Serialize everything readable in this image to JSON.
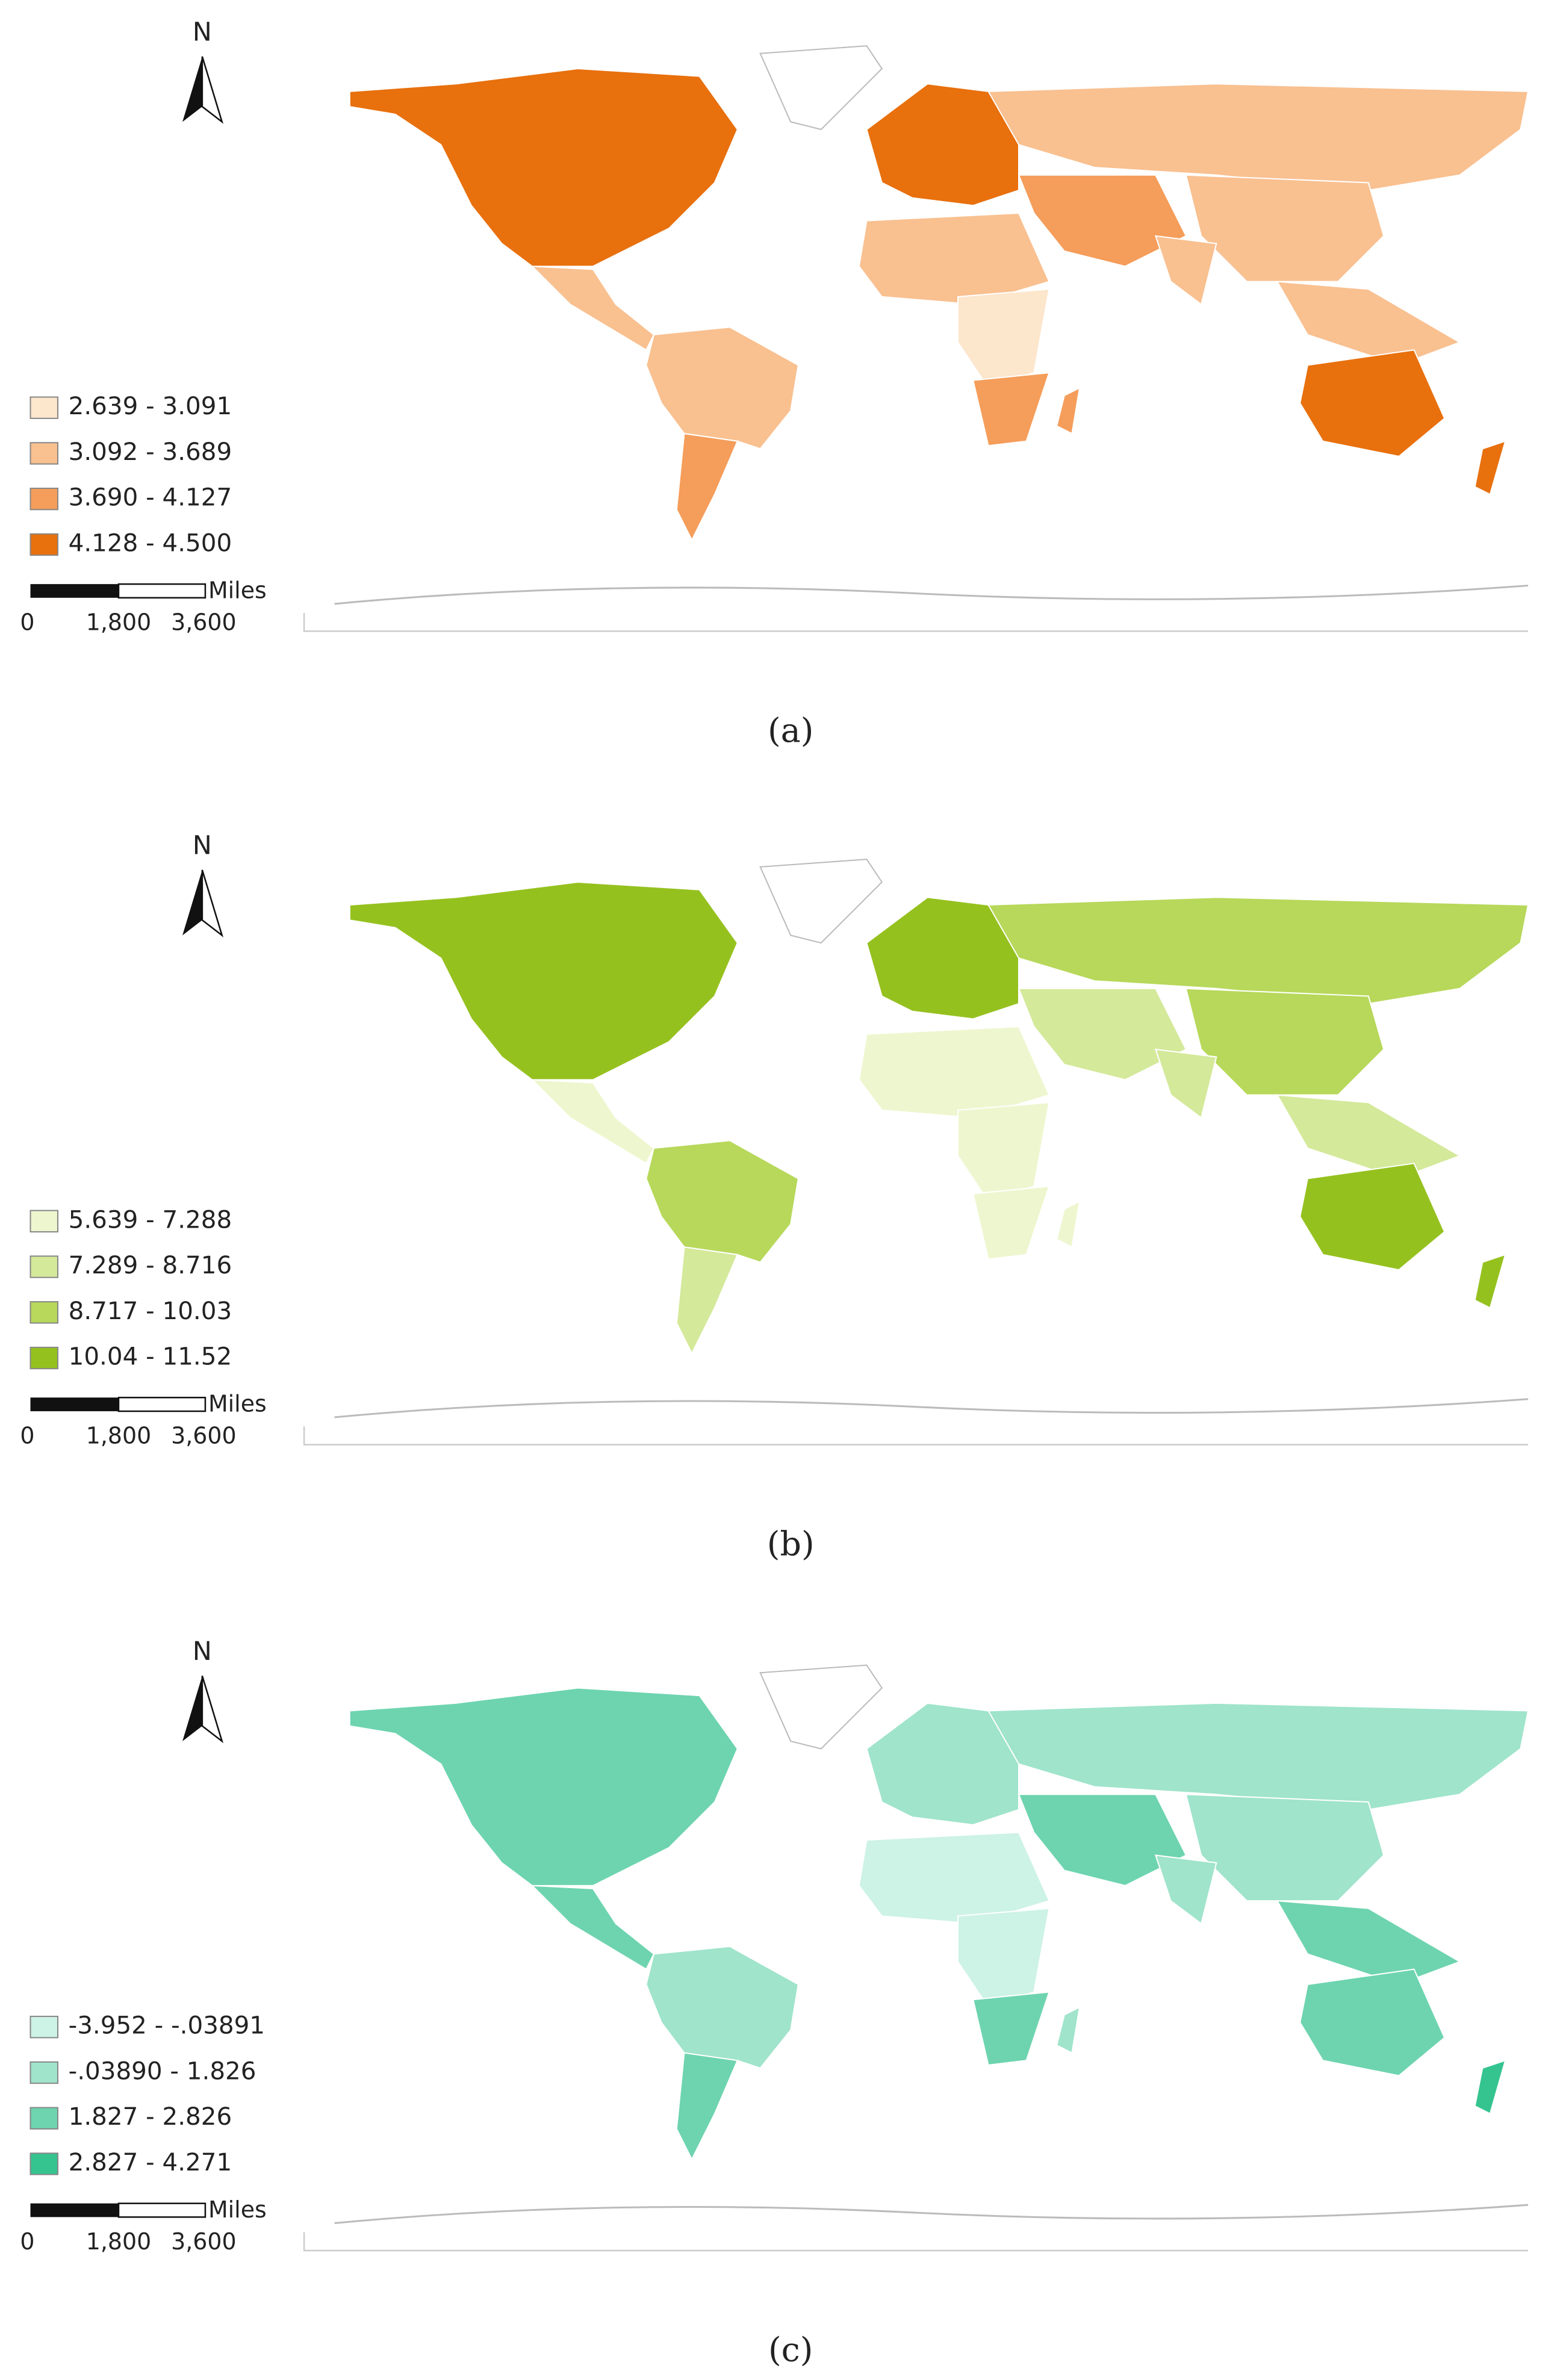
{
  "panels": [
    {
      "label": "(a)",
      "north": "N",
      "legend": [
        {
          "label": "2.639 - 3.091",
          "color": "#fce6cc"
        },
        {
          "label": "3.092 - 3.689",
          "color": "#f9c090"
        },
        {
          "label": "3.690 - 4.127",
          "color": "#f59d5a"
        },
        {
          "label": "4.128 - 4.500",
          "color": "#e8700d"
        }
      ],
      "scale": {
        "unit": "Miles",
        "ticks": [
          "0",
          "1,800",
          "3,600"
        ]
      }
    },
    {
      "label": "(b)",
      "north": "N",
      "legend": [
        {
          "label": "5.639 - 7.288",
          "color": "#eef6cf"
        },
        {
          "label": "7.289 - 8.716",
          "color": "#d4e99a"
        },
        {
          "label": "8.717 - 10.03",
          "color": "#b7d85a"
        },
        {
          "label": "10.04 - 11.52",
          "color": "#95c11f"
        }
      ],
      "scale": {
        "unit": "Miles",
        "ticks": [
          "0",
          "1,800",
          "3,600"
        ]
      }
    },
    {
      "label": "(c)",
      "north": "N",
      "legend": [
        {
          "label": "-3.952 - -.03891",
          "color": "#cdf2e6"
        },
        {
          "label": "-.03890 - 1.826",
          "color": "#9fe4cb"
        },
        {
          "label": "1.827 - 2.826",
          "color": "#6dd4af"
        },
        {
          "label": "2.827 - 4.271",
          "color": "#35c48f"
        }
      ],
      "scale": {
        "unit": "Miles",
        "ticks": [
          "0",
          "1,800",
          "3,600"
        ]
      }
    }
  ]
}
